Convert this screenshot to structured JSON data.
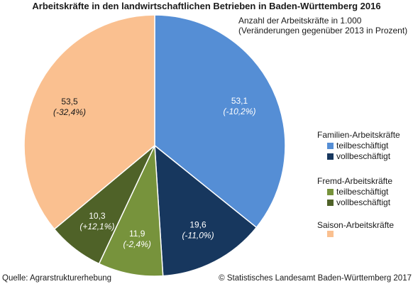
{
  "title": "Arbeitskräfte in den landwirtschaftlichen Betrieben in Baden-Württemberg 2016",
  "subtitle": [
    "Anzahl der Arbeitskräfte in 1.000",
    "(Veränderungen gegenüber 2013 in Prozent)"
  ],
  "legend": {
    "groups": [
      {
        "title": "Familien-Arbeitskräfte",
        "items": [
          {
            "label": "teilbeschäftigt",
            "color": "#558ed5"
          },
          {
            "label": "vollbeschäftigt",
            "color": "#17375e"
          }
        ]
      },
      {
        "title": "Fremd-Arbeitskräfte",
        "items": [
          {
            "label": "teilbeschäftigt",
            "color": "#77933c"
          },
          {
            "label": "vollbeschäftigt",
            "color": "#4f6228"
          }
        ]
      },
      {
        "title": "Saison-Arbeitskräfte",
        "items": [
          {
            "label": "",
            "color": "#fac090"
          }
        ]
      }
    ]
  },
  "footer": {
    "source": "Quelle: Agrarstrukturerhebung",
    "copyright": "© Statistisches Landesamt Baden-Württemberg 2017"
  },
  "chart_data": {
    "type": "pie",
    "title": "Arbeitskräfte in den landwirtschaftlichen Betrieben in Baden-Württemberg 2016",
    "unit": "Anzahl der Arbeitskräfte in 1.000",
    "slices": [
      {
        "group": "Familien-Arbeitskräfte",
        "label": "teilbeschäftigt",
        "value": 53.1,
        "value_text": "53,1",
        "change_text": "(-10,2%)",
        "color": "#558ed5",
        "label_color": "#ffffff"
      },
      {
        "group": "Familien-Arbeitskräfte",
        "label": "vollbeschäftigt",
        "value": 19.6,
        "value_text": "19,6",
        "change_text": "(-11,0%)",
        "color": "#17375e",
        "label_color": "#ffffff"
      },
      {
        "group": "Fremd-Arbeitskräfte",
        "label": "teilbeschäftigt",
        "value": 11.9,
        "value_text": "11,9",
        "change_text": "(-2,4%)",
        "color": "#77933c",
        "label_color": "#ffffff"
      },
      {
        "group": "Fremd-Arbeitskräfte",
        "label": "vollbeschäftigt",
        "value": 10.3,
        "value_text": "10,3",
        "change_text": "(+12,1%)",
        "color": "#4f6228",
        "label_color": "#ffffff"
      },
      {
        "group": "Saison-Arbeitskräfte",
        "label": "",
        "value": 53.5,
        "value_text": "53,5",
        "change_text": "(-32,4%)",
        "color": "#fac090",
        "label_color": "#1a1a1a"
      }
    ]
  }
}
